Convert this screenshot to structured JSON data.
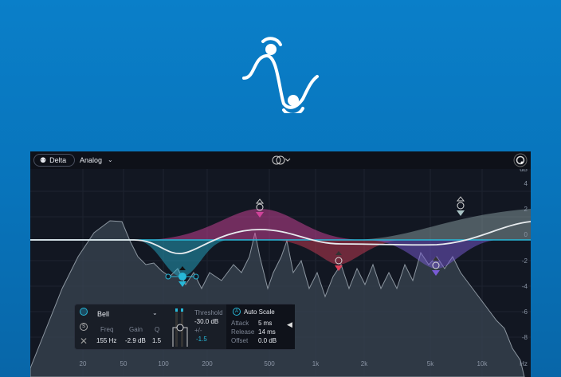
{
  "topbar": {
    "delta_label": "Delta",
    "mode_value": "Analog"
  },
  "db_axis": {
    "unit": "dB",
    "ticks": [
      "4",
      "2",
      "0",
      "-2",
      "-4",
      "-6",
      "-8"
    ]
  },
  "freq_axis": {
    "ticks": [
      "20",
      "50",
      "100",
      "200",
      "500",
      "1k",
      "2k",
      "5k",
      "10k"
    ],
    "unit": "Hz"
  },
  "band_panel": {
    "shape": "Bell",
    "freq_label": "Freq",
    "freq_value": "155 Hz",
    "gain_label": "Gain",
    "gain_value": "-2.9 dB",
    "q_label": "Q",
    "q_value": "1.5",
    "threshold_label": "Threshold",
    "threshold_value": "-30.0 dB",
    "range_label": "+/-",
    "range_value": "-1.5",
    "auto_scale_label": "Auto Scale",
    "attack_label": "Attack",
    "attack_value": "5 ms",
    "release_label": "Release",
    "release_value": "14 ms",
    "offset_label": "Offset",
    "offset_value": "0.0 dB"
  },
  "colors": {
    "background": "#0874bb",
    "band1": "#27b8d8",
    "band2": "#d0439a",
    "band3": "#e0405a",
    "band4": "#7a5cd6",
    "band5": "#a9c2c4"
  }
}
